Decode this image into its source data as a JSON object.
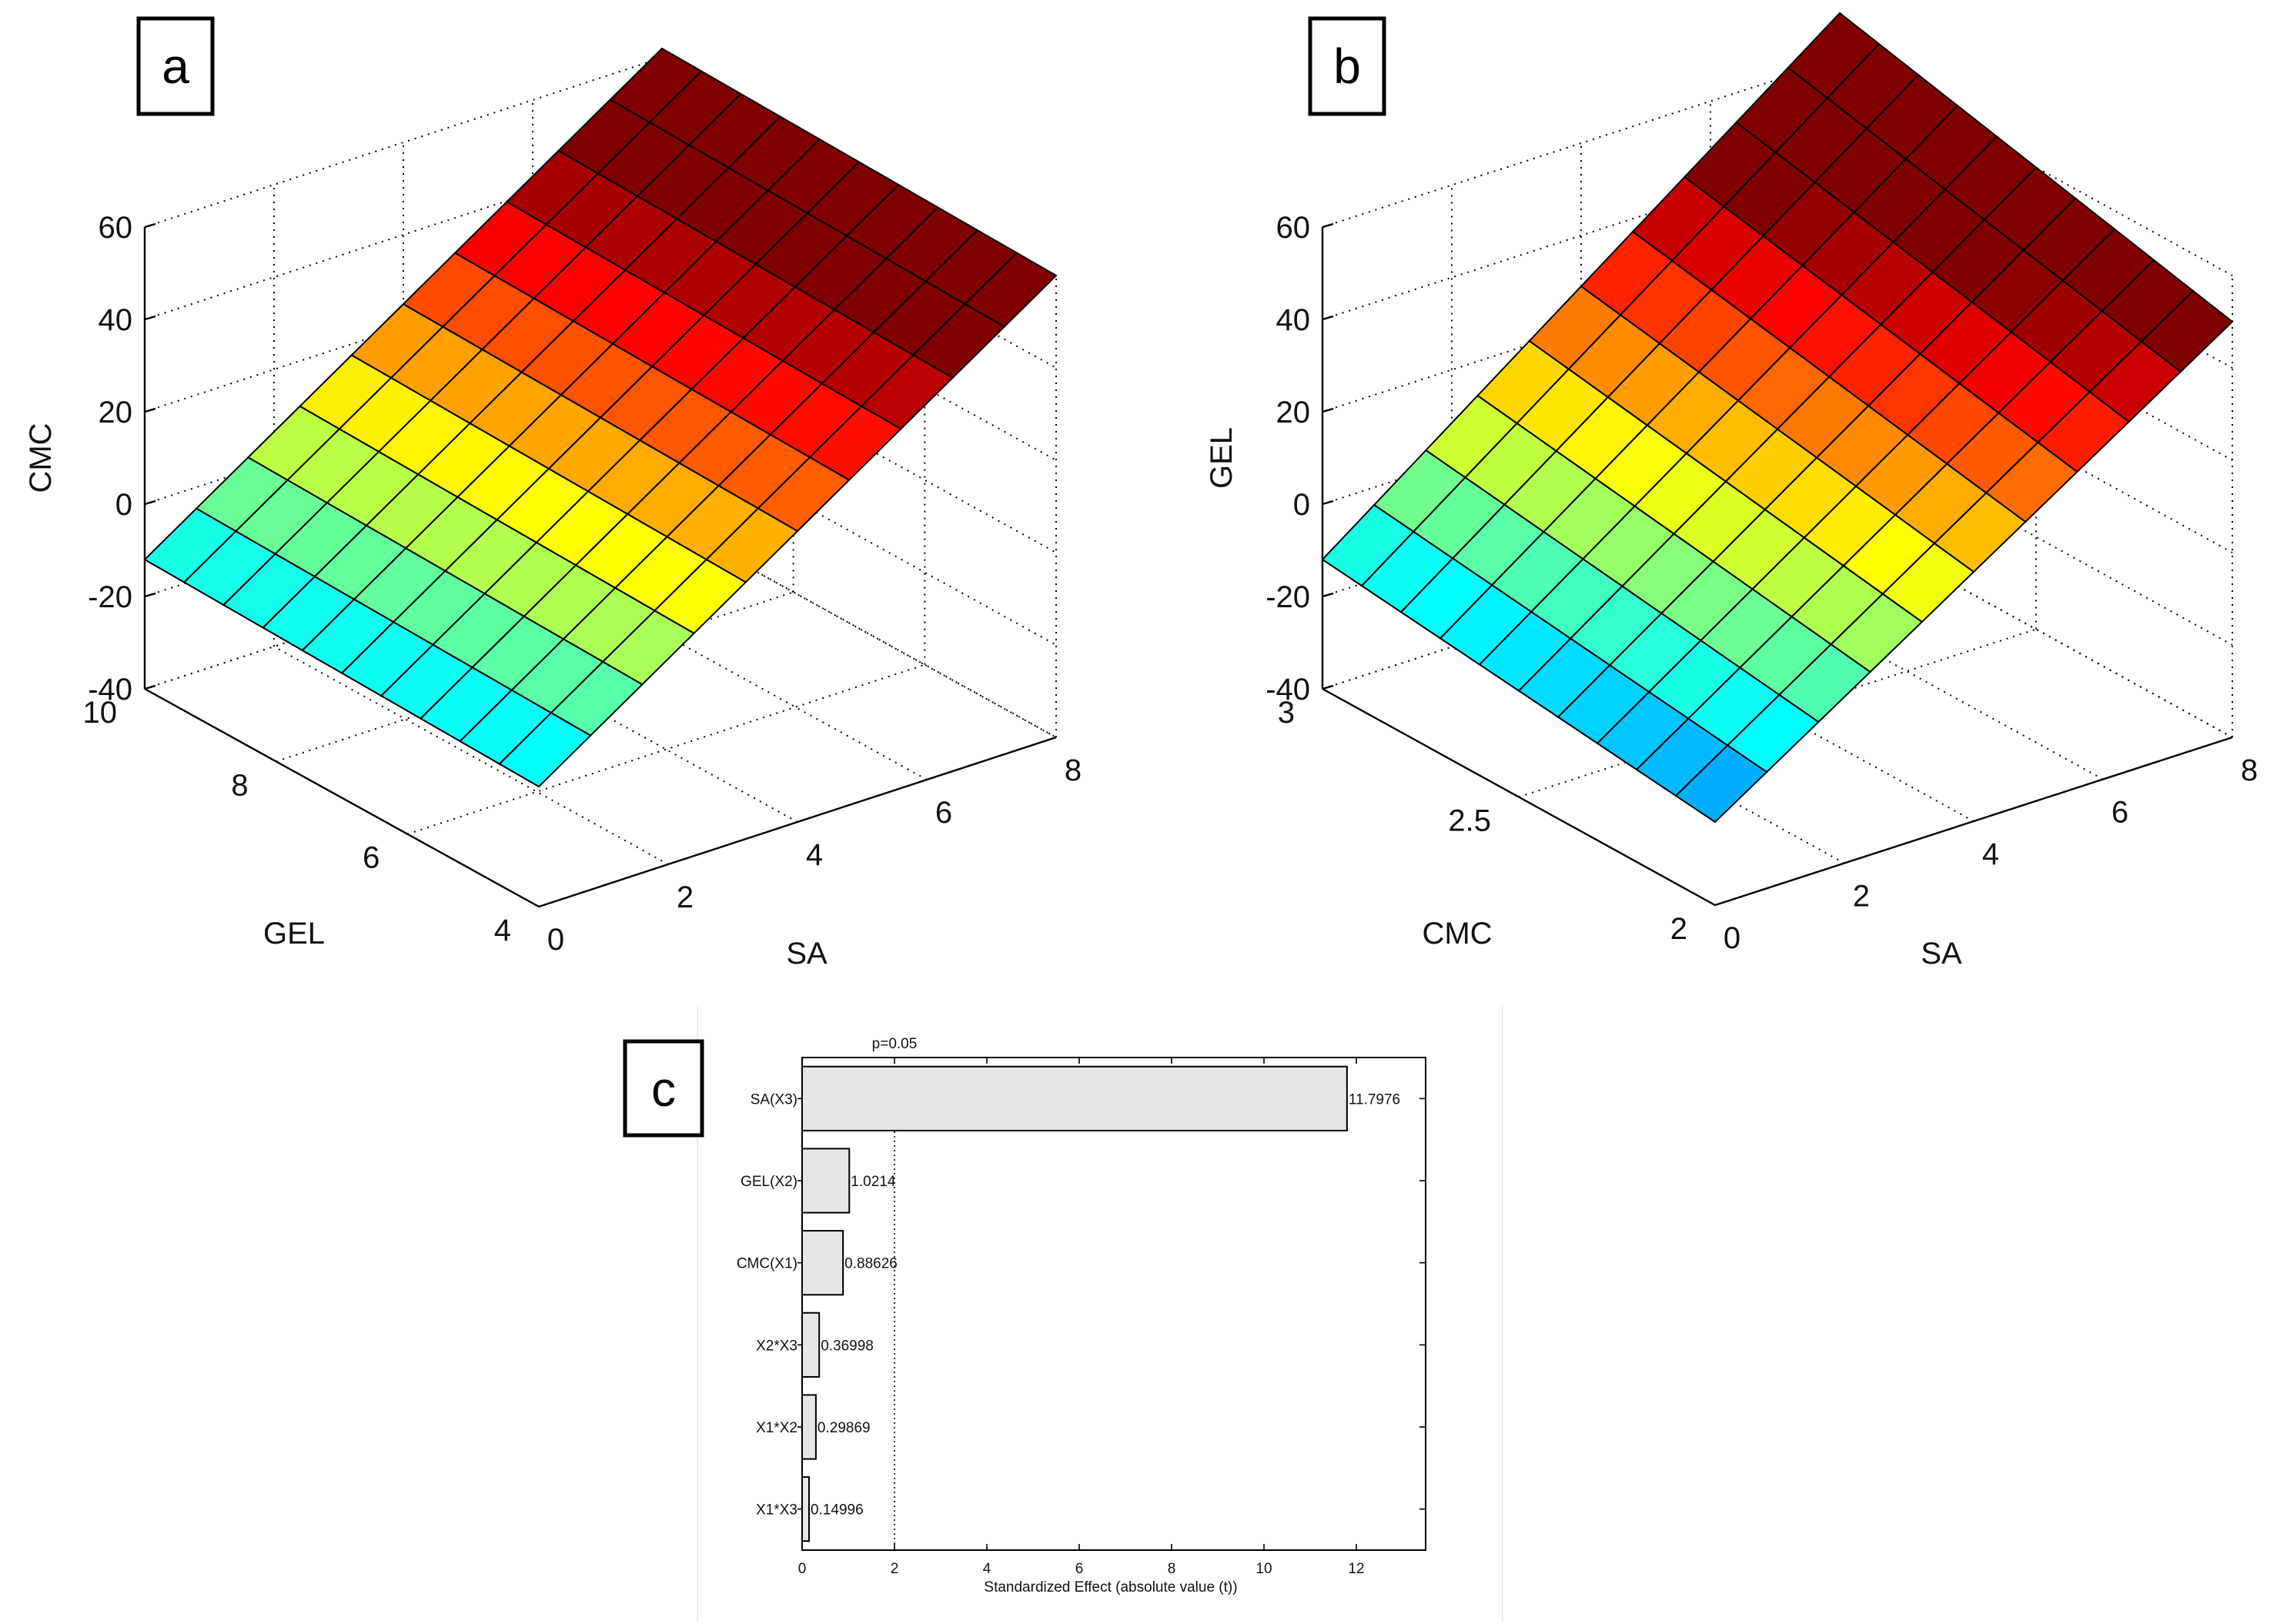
{
  "panels": {
    "a": {
      "label": "a",
      "z_label": "CMC",
      "x_label": "SA",
      "y_label": "GEL",
      "z_ticks": [
        "60",
        "40",
        "20",
        "0",
        "-20",
        "-40"
      ],
      "x_ticks": [
        "0",
        "2",
        "4",
        "6",
        "8"
      ],
      "y_ticks": [
        "10",
        "8",
        "6",
        "4"
      ]
    },
    "b": {
      "label": "b",
      "z_label": "GEL",
      "x_label": "SA",
      "y_label": "CMC",
      "z_ticks": [
        "60",
        "40",
        "20",
        "0",
        "-20",
        "-40"
      ],
      "x_ticks": [
        "0",
        "2",
        "4",
        "6",
        "8"
      ],
      "y_ticks": [
        "3",
        "2.5",
        "2"
      ]
    },
    "c": {
      "label": "c",
      "p_label": "p=0.05",
      "xlabel": "Standardized Effect (absolute value (t))",
      "x_ticks": [
        "0",
        "2",
        "4",
        "6",
        "8",
        "10",
        "12"
      ]
    }
  },
  "chart_data": [
    {
      "type": "surface",
      "panel": "a",
      "xlabel": "SA",
      "ylabel": "GEL",
      "zlabel": "CMC",
      "xlim": [
        0,
        8
      ],
      "ylim": [
        4,
        10
      ],
      "zlim": [
        -40,
        60
      ],
      "surface_corners": {
        "SA=0,GEL=10": -12,
        "SA=8,GEL=10": 62,
        "SA=0,GEL=4": -14,
        "SA=8,GEL=4": 60
      },
      "colormap": "jet",
      "grid": true
    },
    {
      "type": "surface",
      "panel": "b",
      "xlabel": "SA",
      "ylabel": "CMC",
      "zlabel": "GEL",
      "xlim": [
        0,
        8
      ],
      "ylim": [
        2,
        3
      ],
      "zlim": [
        -40,
        60
      ],
      "surface_corners": {
        "SA=0,CMC=3": -12,
        "SA=8,CMC=3": 70,
        "SA=0,CMC=2": -22,
        "SA=8,CMC=2": 50
      },
      "colormap": "jet",
      "grid": true
    },
    {
      "type": "bar",
      "panel": "c",
      "orientation": "horizontal",
      "categories": [
        "SA(X3)",
        "GEL(X2)",
        "CMC(X1)",
        "X2*X3",
        "X1*X2",
        "X1*X3"
      ],
      "values": [
        11.7976,
        1.0214,
        0.88626,
        0.36998,
        0.29869,
        0.14996
      ],
      "value_labels": [
        "11.7976",
        "1.0214",
        "0.88626",
        "0.36998",
        "0.29869",
        "0.14996"
      ],
      "xlabel": "Standardized Effect (absolute value (t))",
      "xlim": [
        0,
        13.5
      ],
      "reference_line": {
        "value": 2,
        "label": "p=0.05"
      },
      "bar_color": "#e6e6e6"
    }
  ]
}
